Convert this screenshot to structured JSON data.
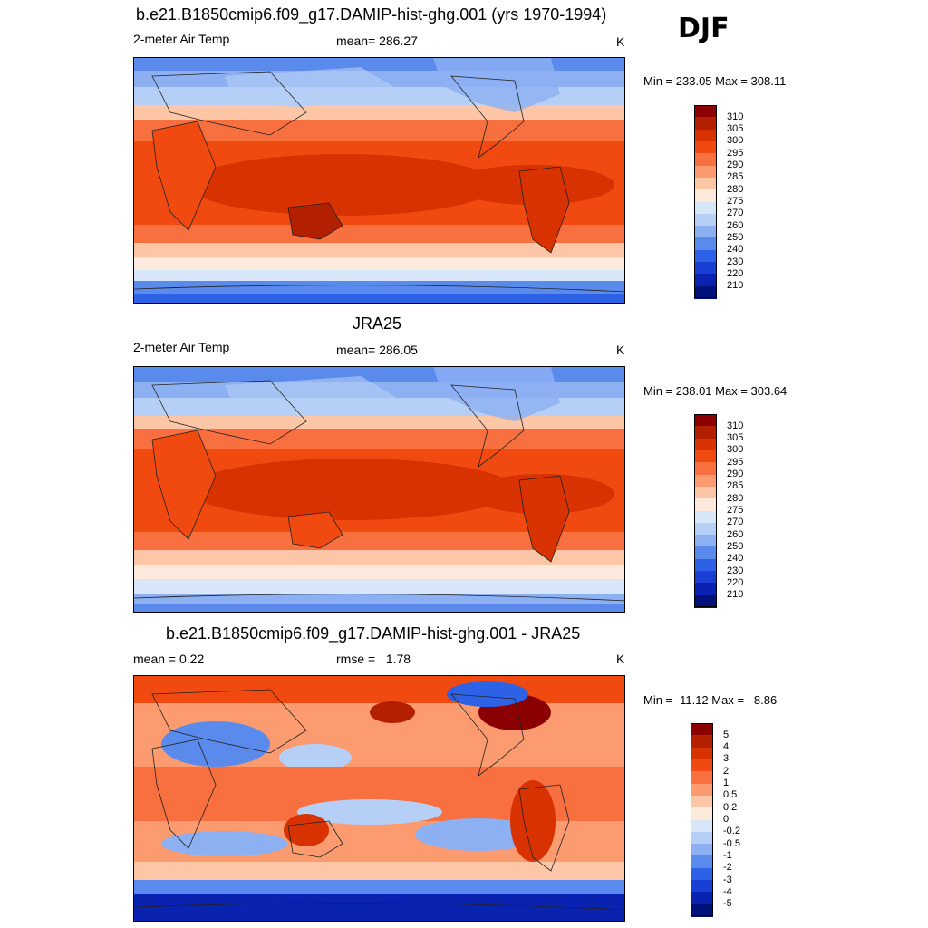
{
  "season": "DJF",
  "panels": [
    {
      "id": "model",
      "title": "b.e21.B1850cmip6.f09_g17.DAMIP-hist-ghg.001 (yrs 1970-1994)",
      "left_label": "2-meter Air Temp",
      "center_label": "mean= 286.27",
      "units": "K",
      "minmax": "Min = 233.05 Max = 308.11"
    },
    {
      "id": "obs",
      "title": "JRA25",
      "left_label": "2-meter Air Temp",
      "center_label": "mean= 286.05",
      "units": "K",
      "minmax": "Min = 238.01 Max = 303.64"
    },
    {
      "id": "diff",
      "title": "b.e21.B1850cmip6.f09_g17.DAMIP-hist-ghg.001 - JRA25",
      "left_label": "mean =   0.22",
      "center_label": "rmse =   1.78",
      "units": "K",
      "minmax": "Min = -11.12 Max =   8.86"
    }
  ],
  "temp_colorbar": {
    "labels": [
      "310",
      "305",
      "300",
      "295",
      "290",
      "285",
      "280",
      "275",
      "270",
      "260",
      "250",
      "240",
      "230",
      "220",
      "210"
    ],
    "colors": [
      "#8b0000",
      "#b22000",
      "#d83200",
      "#f04a10",
      "#f87040",
      "#fc9a70",
      "#fdc6a6",
      "#fdeadc",
      "#d8e6fa",
      "#b6cff6",
      "#8cb0f2",
      "#5a8aec",
      "#2e62e6",
      "#1a3fd4",
      "#0a22b0",
      "#00127a"
    ]
  },
  "diff_colorbar": {
    "labels": [
      "5",
      "4",
      "3",
      "2",
      "1",
      "0.5",
      "0.2",
      "0",
      "-0.2",
      "-0.5",
      "-1",
      "-2",
      "-3",
      "-4",
      "-5"
    ],
    "colors": [
      "#8b0000",
      "#b22000",
      "#d83200",
      "#f04a10",
      "#f87040",
      "#fc9a70",
      "#fdc6a6",
      "#fdeadc",
      "#d8e6fa",
      "#b6cff6",
      "#8cb0f2",
      "#5a8aec",
      "#2e62e6",
      "#1a3fd4",
      "#0a22b0",
      "#00127a"
    ]
  }
}
